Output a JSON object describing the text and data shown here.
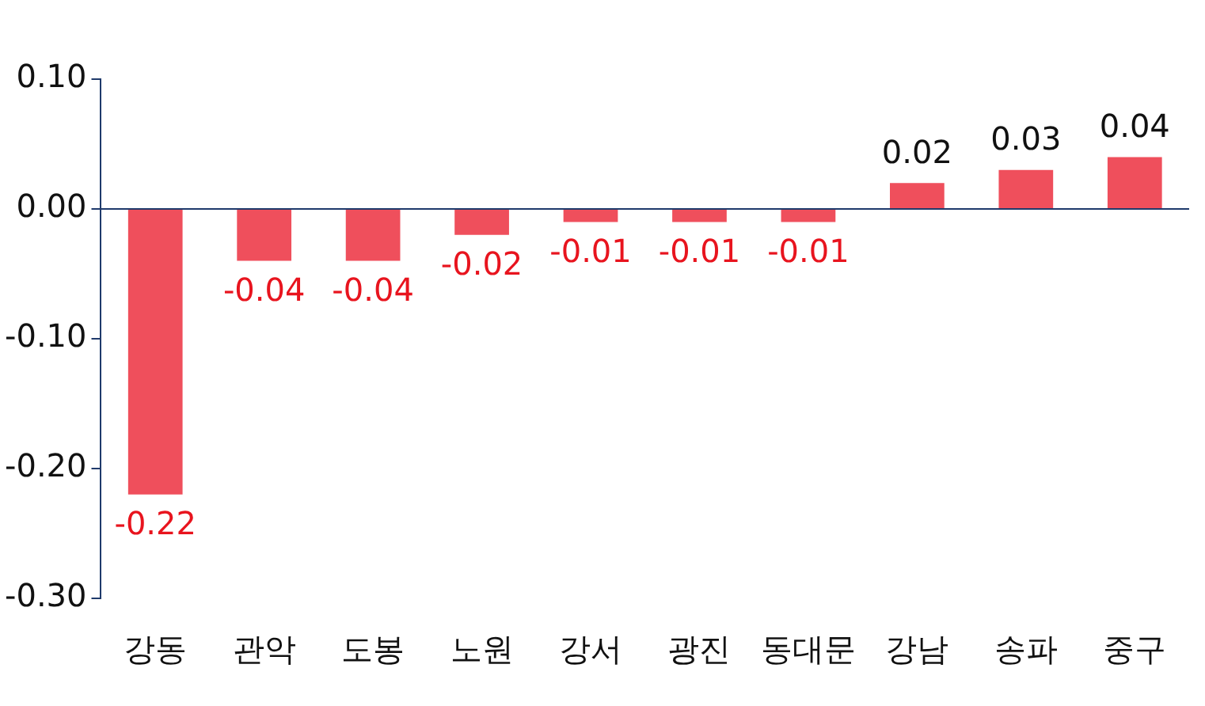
{
  "chart_data": {
    "type": "bar",
    "categories": [
      "강동",
      "관악",
      "도봉",
      "노원",
      "강서",
      "광진",
      "동대문",
      "강남",
      "송파",
      "중구"
    ],
    "values": [
      -0.22,
      -0.04,
      -0.04,
      -0.02,
      -0.01,
      -0.01,
      -0.01,
      0.02,
      0.03,
      0.04
    ],
    "color": "#ef4f5c",
    "ylim": [
      -0.3,
      0.1
    ],
    "yticks": [
      {
        "value": 0.1,
        "label": "0.10"
      },
      {
        "value": 0,
        "label": "0.00"
      },
      {
        "value": -0.1,
        "label": "-0.10"
      },
      {
        "value": -0.2,
        "label": "-0.20"
      },
      {
        "value": -0.3,
        "label": "-0.30"
      }
    ],
    "ref_lines": [
      {
        "axis": "y",
        "value": 0,
        "color": "#1f3a6b"
      }
    ],
    "data_labels": true,
    "grid": false,
    "legend": false
  }
}
